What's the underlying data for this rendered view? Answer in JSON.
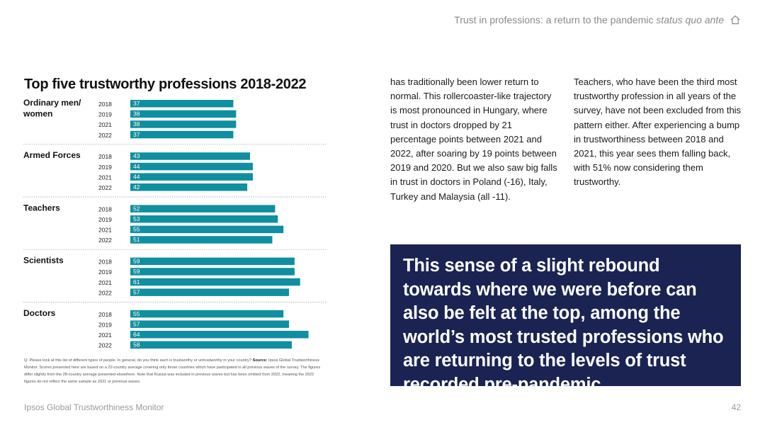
{
  "header": {
    "title_main": "Trust in professions: a return to the pandemic ",
    "title_italic": "status quo ante",
    "home_icon": "home-icon"
  },
  "chart_data": {
    "type": "bar",
    "title": "Top five trustworthy professions 2018-2022",
    "orientation": "horizontal",
    "bar_color": "#0f8fa0",
    "groups": [
      {
        "name": "Ordinary men/ women",
        "years": [
          "2018",
          "2019",
          "2021",
          "2022"
        ],
        "values": [
          37,
          38,
          38,
          37
        ]
      },
      {
        "name": "Armed Forces",
        "years": [
          "2018",
          "2019",
          "2021",
          "2022"
        ],
        "values": [
          43,
          44,
          44,
          42
        ]
      },
      {
        "name": "Teachers",
        "years": [
          "2018",
          "2019",
          "2021",
          "2022"
        ],
        "values": [
          52,
          53,
          55,
          51
        ]
      },
      {
        "name": "Scientists",
        "years": [
          "2018",
          "2019",
          "2021",
          "2022"
        ],
        "values": [
          59,
          59,
          61,
          57
        ]
      },
      {
        "name": "Doctors",
        "years": [
          "2018",
          "2019",
          "2021",
          "2022"
        ],
        "values": [
          55,
          57,
          64,
          58
        ]
      }
    ]
  },
  "note": {
    "lead": "Q: Please look at this list of different types of people. In general, do you think each is trustworthy or untrustworthy in your country? ",
    "source_label": "Source:",
    "body": " Ipsos Global Trustworthiness Monitor. Scores presented here are based on a 22-country average covering only those countries which have participated in all previous waves of the survey. The figures differ slightly from the 28-country average presented elsewhere. Note that Russia was included in previous waves but has been omitted from 2022, meaning the 2022 figures do not reflect the same sample as 2021 or previous waves."
  },
  "text": {
    "col1": "has traditionally been lower return to normal. This rollercoaster-like trajectory is most pronounced in Hungary, where trust in doctors dropped by 21 percentage points between 2021 and 2022, after soaring by 19 points between 2019 and 2020. But we also saw big falls in trust in doctors in Poland (-16), Italy, Turkey and Malaysia (all -11).",
    "col2": "Teachers, who have been the third most trustworthy profession in all years of the survey, have not been excluded from this pattern either. After experiencing a bump in trustworthiness between 2018 and 2021, this year sees them falling back, with 51% now considering them trustworthy."
  },
  "quote": "This sense of a slight rebound towards where we were before can also be felt at the top, among  the world’s most trusted professions who are returning to the levels of trust recorded pre-pandemic",
  "footer": {
    "left": "Ipsos Global Trustworthiness Monitor",
    "page": "42"
  }
}
